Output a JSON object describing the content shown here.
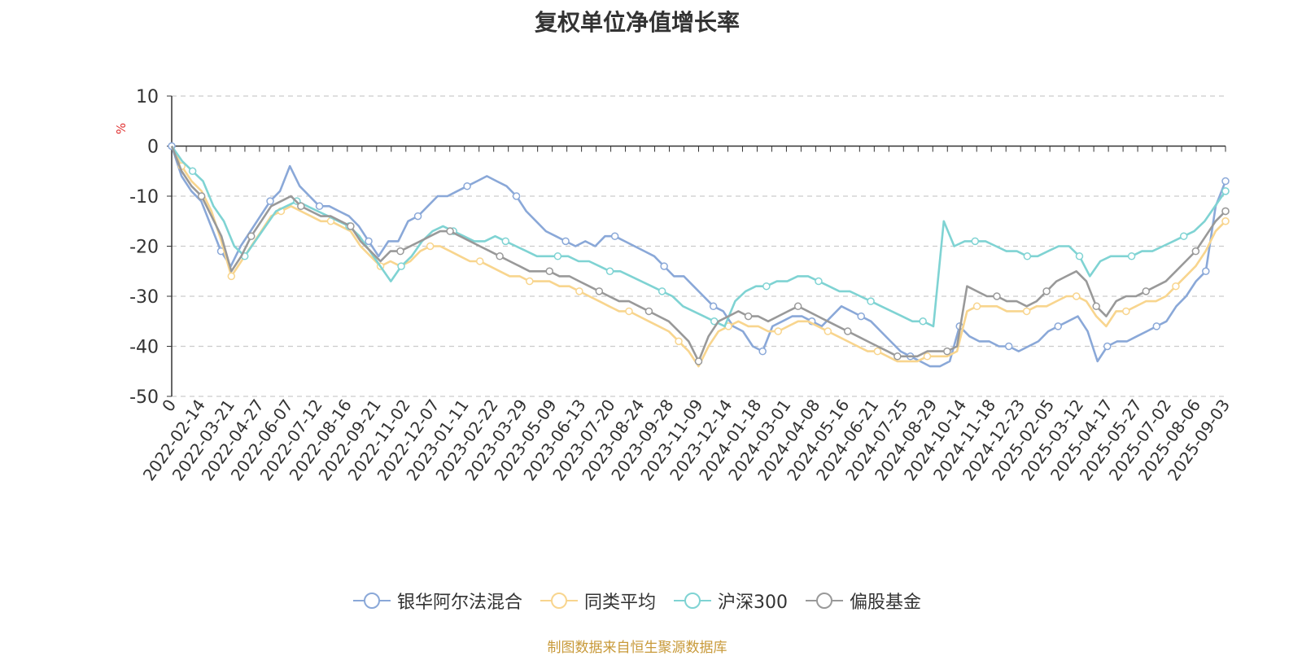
{
  "chart_data": {
    "type": "line",
    "title": "复权单位净值增长率",
    "ylabel": "%",
    "ylim": [
      -50,
      10
    ],
    "yticks": [
      10,
      0,
      -10,
      -20,
      -30,
      -40,
      -50
    ],
    "grid": true,
    "legend_position": "bottom",
    "x_tick_labels": [
      "0",
      "2022-02-14",
      "2022-03-21",
      "2022-04-27",
      "2022-06-07",
      "2022-07-12",
      "2022-08-16",
      "2022-09-21",
      "2022-11-02",
      "2022-12-07",
      "2023-01-11",
      "2023-02-22",
      "2023-03-29",
      "2023-05-09",
      "2023-06-13",
      "2023-07-20",
      "2023-08-24",
      "2023-09-28",
      "2023-11-09",
      "2023-12-14",
      "2024-01-18",
      "2024-03-01",
      "2024-04-08",
      "2024-05-16",
      "2024-06-21",
      "2024-07-25",
      "2024-08-29",
      "2024-10-14",
      "2024-11-18",
      "2024-12-23",
      "2025-02-05",
      "2025-03-12",
      "2025-04-17",
      "2025-05-27",
      "2025-07-02",
      "2025-08-06",
      "2025-09-03"
    ],
    "series": [
      {
        "name": "银华阿尔法混合",
        "color": "#8aa8d8",
        "values": [
          0,
          -6,
          -9,
          -11,
          -16,
          -21,
          -24,
          -20,
          -17,
          -14,
          -11,
          -9,
          -4,
          -8,
          -10,
          -12,
          -12,
          -13,
          -14,
          -16,
          -19,
          -22,
          -19,
          -19,
          -15,
          -14,
          -12,
          -10,
          -10,
          -9,
          -8,
          -7,
          -6,
          -7,
          -8,
          -10,
          -13,
          -15,
          -17,
          -18,
          -19,
          -20,
          -19,
          -20,
          -18,
          -18,
          -19,
          -20,
          -21,
          -22,
          -24,
          -26,
          -26,
          -28,
          -30,
          -32,
          -33,
          -36,
          -37,
          -40,
          -41,
          -36,
          -35,
          -34,
          -34,
          -35,
          -36,
          -34,
          -32,
          -33,
          -34,
          -35,
          -37,
          -39,
          -41,
          -42,
          -43,
          -44,
          -44,
          -43,
          -36,
          -38,
          -39,
          -39,
          -40,
          -40,
          -41,
          -40,
          -39,
          -37,
          -36,
          -35,
          -34,
          -37,
          -43,
          -40,
          -39,
          -39,
          -38,
          -37,
          -36,
          -35,
          -32,
          -30,
          -27,
          -25,
          -12,
          -7
        ]
      },
      {
        "name": "同类平均",
        "color": "#f8d58e",
        "values": [
          0,
          -4,
          -7,
          -9,
          -13,
          -19,
          -26,
          -23,
          -20,
          -17,
          -14,
          -13,
          -12,
          -13,
          -14,
          -15,
          -15,
          -16,
          -17,
          -20,
          -22,
          -24,
          -23,
          -24,
          -23,
          -21,
          -20,
          -20,
          -21,
          -22,
          -23,
          -23,
          -24,
          -25,
          -26,
          -26,
          -27,
          -27,
          -27,
          -28,
          -28,
          -29,
          -30,
          -31,
          -32,
          -33,
          -33,
          -34,
          -35,
          -36,
          -37,
          -39,
          -41,
          -44,
          -40,
          -37,
          -36,
          -35,
          -36,
          -36,
          -37,
          -37,
          -36,
          -35,
          -35,
          -36,
          -37,
          -38,
          -39,
          -40,
          -41,
          -41,
          -42,
          -43,
          -43,
          -43,
          -42,
          -42,
          -42,
          -41,
          -33,
          -32,
          -32,
          -32,
          -33,
          -33,
          -33,
          -32,
          -32,
          -31,
          -30,
          -30,
          -31,
          -34,
          -36,
          -33,
          -33,
          -32,
          -31,
          -31,
          -30,
          -28,
          -26,
          -24,
          -21,
          -17,
          -15
        ]
      },
      {
        "name": "沪深300",
        "color": "#7fd3d3",
        "values": [
          0,
          -3,
          -5,
          -7,
          -12,
          -15,
          -20,
          -22,
          -19,
          -16,
          -13,
          -12,
          -11,
          -12,
          -13,
          -14,
          -15,
          -16,
          -18,
          -21,
          -24,
          -27,
          -24,
          -22,
          -19,
          -17,
          -16,
          -17,
          -18,
          -19,
          -19,
          -18,
          -19,
          -20,
          -21,
          -22,
          -22,
          -22,
          -22,
          -23,
          -23,
          -24,
          -25,
          -25,
          -26,
          -27,
          -28,
          -29,
          -30,
          -32,
          -33,
          -34,
          -35,
          -36,
          -31,
          -29,
          -28,
          -28,
          -27,
          -27,
          -26,
          -26,
          -27,
          -28,
          -29,
          -29,
          -30,
          -31,
          -32,
          -33,
          -34,
          -35,
          -35,
          -36,
          -15,
          -20,
          -19,
          -19,
          -19,
          -20,
          -21,
          -21,
          -22,
          -22,
          -21,
          -20,
          -20,
          -22,
          -26,
          -23,
          -22,
          -22,
          -22,
          -21,
          -21,
          -20,
          -19,
          -18,
          -17,
          -15,
          -12,
          -9
        ]
      },
      {
        "name": "偏股基金",
        "color": "#999999",
        "values": [
          0,
          -5,
          -8,
          -10,
          -14,
          -18,
          -25,
          -22,
          -18,
          -15,
          -12,
          -11,
          -10,
          -12,
          -13,
          -14,
          -14,
          -15,
          -16,
          -19,
          -21,
          -23,
          -21,
          -21,
          -20,
          -19,
          -18,
          -17,
          -17,
          -18,
          -19,
          -20,
          -21,
          -22,
          -23,
          -24,
          -25,
          -25,
          -25,
          -26,
          -26,
          -27,
          -28,
          -29,
          -30,
          -31,
          -31,
          -32,
          -33,
          -34,
          -35,
          -37,
          -39,
          -43,
          -38,
          -35,
          -34,
          -33,
          -34,
          -34,
          -35,
          -34,
          -33,
          -32,
          -33,
          -34,
          -35,
          -36,
          -37,
          -38,
          -39,
          -40,
          -41,
          -42,
          -42,
          -42,
          -41,
          -41,
          -41,
          -40,
          -28,
          -29,
          -30,
          -30,
          -31,
          -31,
          -32,
          -31,
          -29,
          -27,
          -26,
          -25,
          -27,
          -32,
          -34,
          -31,
          -30,
          -30,
          -29,
          -28,
          -27,
          -25,
          -23,
          -21,
          -18,
          -15,
          -13
        ]
      }
    ]
  },
  "legend": {
    "items": [
      "银华阿尔法混合",
      "同类平均",
      "沪深300",
      "偏股基金"
    ]
  },
  "footer": {
    "source": "制图数据来自恒生聚源数据库"
  }
}
